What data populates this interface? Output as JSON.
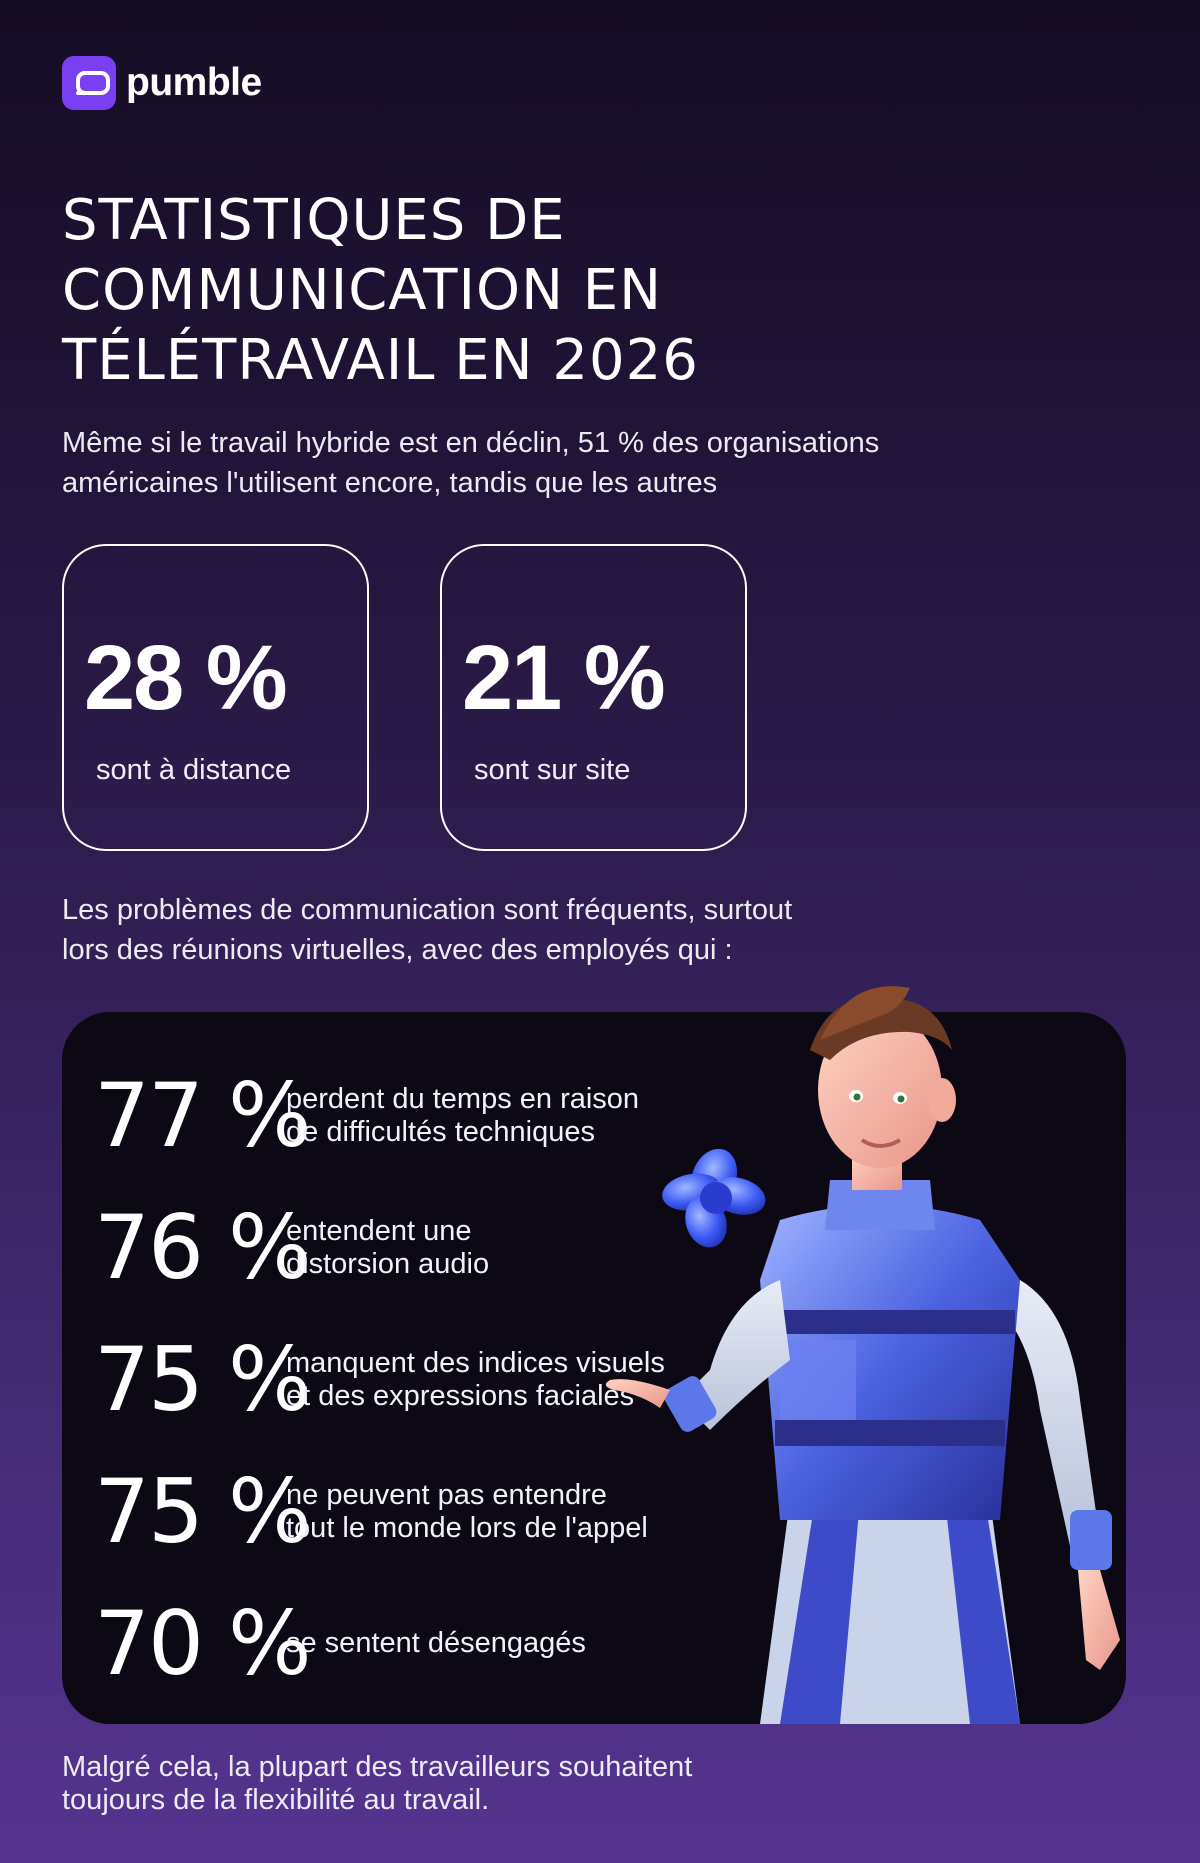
{
  "brand": {
    "name": "pumble",
    "icon": "pumble-logo-icon",
    "color": "#7a3ff0"
  },
  "title": "STATISTIQUES DE\nCOMMUNICATION EN\nTÉLÉTRAVAIL EN 2026",
  "intro": "Même si le travail hybride est en déclin, 51 % des organisations\naméricaines l'utilisent encore, tandis que les autres",
  "stats": [
    {
      "value": "28 %",
      "label": "sont à distance"
    },
    {
      "value": "21 %",
      "label": "sont sur site"
    }
  ],
  "problems_intro": "Les problèmes de communication sont fréquents, surtout\nlors des réunions virtuelles, avec des employés qui :",
  "problems": [
    {
      "value": "77 %",
      "text": "perdent du temps en raison\nde difficultés techniques"
    },
    {
      "value": "76 %",
      "text": "entendent une\ndistorsion audio"
    },
    {
      "value": "75 %",
      "text": "manquent des indices visuels\net des expressions faciales"
    },
    {
      "value": "75 %",
      "text": "ne peuvent pas entendre\ntout le monde lors de l'appel"
    },
    {
      "value": "70 %",
      "text": "se sentent désengagés"
    }
  ],
  "conclusion": "Malgré cela, la plupart des travailleurs souhaitent\ntoujours de la flexibilité au travail.",
  "illustration": "3d-character-with-floating-logo",
  "colors": {
    "background_top": "#150d24",
    "background_bottom": "#56348f",
    "panel": "#0d0914",
    "accent": "#3d5bf5"
  }
}
